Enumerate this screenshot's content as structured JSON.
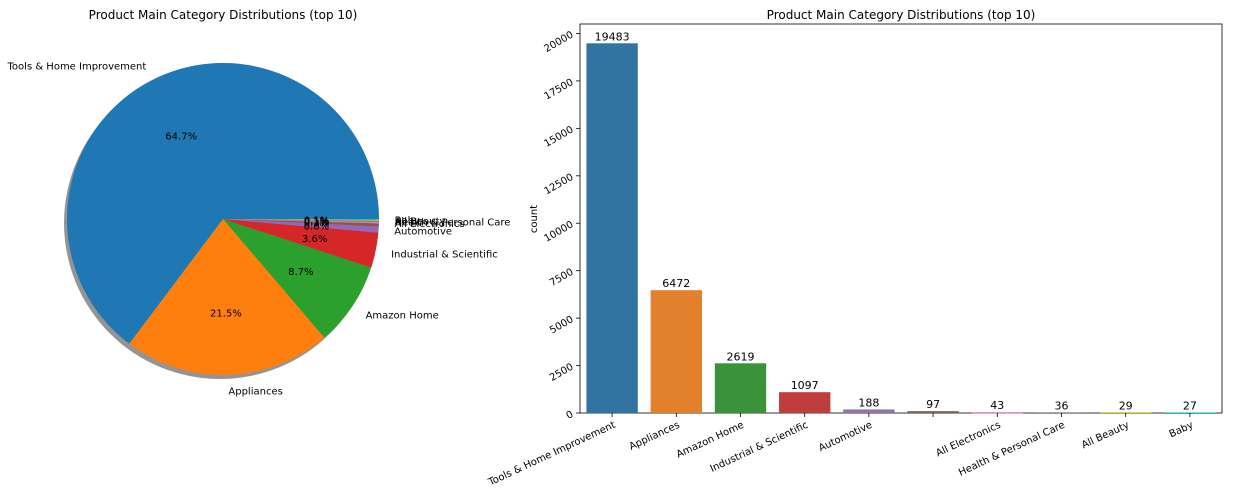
{
  "chart_data": [
    {
      "type": "pie",
      "title": "Product Main Category Distributions (top 10)",
      "shadow": true,
      "categories": [
        "Tools & Home Improvement",
        "Appliances",
        "Amazon Home",
        "Industrial & Scientific",
        "Automotive",
        "",
        "All Electronics",
        "Health & Personal Care",
        "All Beauty",
        "Baby"
      ],
      "values": [
        19483,
        6472,
        2619,
        1097,
        188,
        97,
        43,
        36,
        29,
        27
      ],
      "percent_labels": [
        "64.7%",
        "21.5%",
        "8.7%",
        "3.6%",
        "0.6%",
        "0.3%",
        "0.1%",
        "0.1%",
        "0.1%",
        "0.1%"
      ],
      "colors": [
        "#1f77b4",
        "#ff7f0e",
        "#2ca02c",
        "#d62728",
        "#9467bd",
        "#8c564b",
        "#e377c2",
        "#7f7f7f",
        "#bcbd22",
        "#17becf"
      ]
    },
    {
      "type": "bar",
      "title": "Product Main Category Distributions (top 10)",
      "xlabel": "",
      "ylabel": "count",
      "categories": [
        "Tools & Home Improvement",
        "Appliances",
        "Amazon Home",
        "Industrial & Scientific",
        "Automotive",
        "",
        "All Electronics",
        "Health & Personal Care",
        "All Beauty",
        "Baby"
      ],
      "values": [
        19483,
        6472,
        2619,
        1097,
        188,
        97,
        43,
        36,
        29,
        27
      ],
      "data_labels": [
        "19483",
        "6472",
        "2619",
        "1097",
        "188",
        "97",
        "43",
        "36",
        "29",
        "27"
      ],
      "ylim": [
        0,
        20500
      ],
      "yticks": [
        0,
        2500,
        5000,
        7500,
        10000,
        12500,
        15000,
        17500,
        20000
      ],
      "grid": false,
      "colors": [
        "#3274a1",
        "#e1812c",
        "#3a923a",
        "#c03d3e",
        "#9372b2",
        "#845b53",
        "#d684bd",
        "#7f7f7f",
        "#a9aa35",
        "#2eabb8"
      ]
    }
  ]
}
